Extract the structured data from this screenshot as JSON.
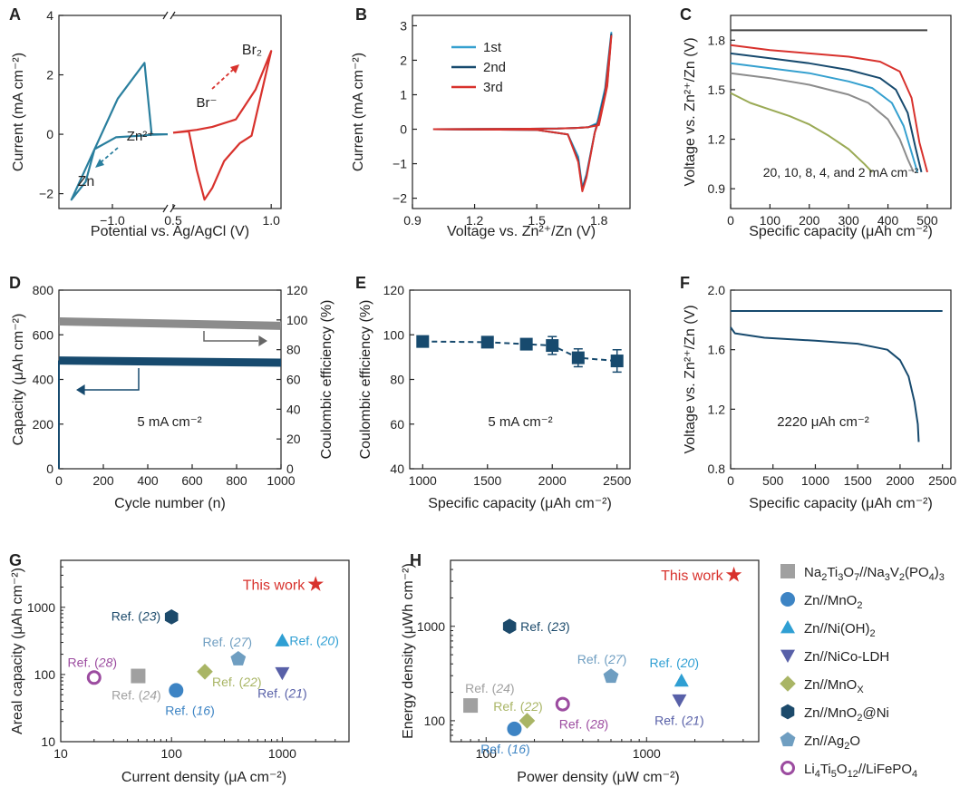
{
  "colors": {
    "axis": "#222222",
    "teal": "#2a7f9e",
    "light_blue": "#35a0cf",
    "navy": "#174a6e",
    "red": "#d8322d",
    "gray": "#8c8c8c",
    "olive": "#9aaa55",
    "dark_gray": "#444444",
    "star": "#d8322d",
    "gray_marker": "#a0a0a0",
    "blue_marker": "#3d84c4",
    "cyan_marker": "#2f9fd3",
    "purple_marker": "#5860a8",
    "olive_marker": "#a9b565",
    "hex_marker": "#1c4a6b",
    "pentagon_marker": "#6f9ec1",
    "ring_marker": "#9c4ca0"
  },
  "chart_data": [
    {
      "panel": "A",
      "type": "line",
      "xlabel": "Potential vs. Ag/AgCl (V)",
      "ylabel": "Current (mA cm⁻²)",
      "xlim_left": [
        -1.3,
        -0.7
      ],
      "xlim_right": [
        0.5,
        1.05
      ],
      "ylim": [
        -2.5,
        4
      ],
      "xticks_left": [
        "−1.0"
      ],
      "xticks_right": [
        "0.5",
        "1.0"
      ],
      "yticks": [
        "−2",
        "0",
        "2",
        "4"
      ],
      "annotations": [
        {
          "text": "Zn²⁺",
          "series": "Zn"
        },
        {
          "text": "Zn",
          "series": "Zn"
        },
        {
          "text": "Br⁻",
          "series": "Br"
        },
        {
          "text": "Br₂",
          "series": "Br"
        }
      ],
      "series": [
        {
          "color": "teal",
          "x": [
            -0.69,
            -0.78,
            -0.82,
            -0.97,
            -1.23,
            -1.15,
            -1.1,
            -0.98,
            -0.84,
            -0.78,
            -0.7
          ],
          "y": [
            0.0,
            0.0,
            2.4,
            1.2,
            -2.2,
            -1.6,
            -0.5,
            -0.1,
            -0.05,
            -0.02,
            0.0
          ]
        },
        {
          "color": "red",
          "x": [
            0.5,
            0.58,
            0.62,
            0.66,
            0.7,
            0.76,
            0.84,
            0.9,
            1.0,
            0.92,
            0.82,
            0.7,
            0.62,
            0.5
          ],
          "y": [
            0.05,
            0.1,
            -1.2,
            -2.2,
            -1.8,
            -0.9,
            -0.3,
            -0.05,
            2.8,
            1.5,
            0.5,
            0.25,
            0.15,
            0.05
          ]
        }
      ]
    },
    {
      "panel": "B",
      "type": "line",
      "xlabel": "Voltage vs. Zn²⁺/Zn (V)",
      "ylabel": "Current (mA cm⁻²)",
      "xlim": [
        0.9,
        1.95
      ],
      "ylim": [
        -2.3,
        3.3
      ],
      "xticks": [
        "0.9",
        "1.2",
        "1.5",
        "1.8"
      ],
      "yticks": [
        "−2",
        "−1",
        "0",
        "1",
        "2",
        "3"
      ],
      "series": [
        {
          "name": "1st",
          "color": "light_blue",
          "x": [
            1.0,
            1.5,
            1.65,
            1.7,
            1.72,
            1.74,
            1.78,
            1.8,
            1.83,
            1.86,
            1.84,
            1.8,
            1.75,
            1.7,
            1.6,
            1.4,
            1.0
          ],
          "y": [
            0.0,
            -0.02,
            -0.15,
            -0.8,
            -1.7,
            -1.3,
            -0.1,
            0.4,
            1.2,
            2.8,
            1.4,
            0.2,
            0.06,
            0.04,
            0.02,
            0.01,
            0.0
          ]
        },
        {
          "name": "2nd",
          "color": "navy",
          "x": [
            1.0,
            1.5,
            1.65,
            1.7,
            1.72,
            1.74,
            1.78,
            1.8,
            1.83,
            1.86,
            1.84,
            1.8,
            1.75,
            1.7,
            1.6,
            1.4,
            1.0
          ],
          "y": [
            0.0,
            -0.02,
            -0.15,
            -0.9,
            -1.75,
            -1.35,
            -0.1,
            0.3,
            1.1,
            2.75,
            1.3,
            0.15,
            0.06,
            0.04,
            0.02,
            0.01,
            0.0
          ]
        },
        {
          "name": "3rd",
          "color": "red",
          "x": [
            1.0,
            1.5,
            1.65,
            1.7,
            1.72,
            1.74,
            1.78,
            1.8,
            1.83,
            1.86,
            1.84,
            1.8,
            1.75,
            1.7,
            1.6,
            1.4,
            1.0
          ],
          "y": [
            0.0,
            -0.02,
            -0.15,
            -0.95,
            -1.8,
            -1.4,
            -0.1,
            0.25,
            1.0,
            2.7,
            1.25,
            0.12,
            0.06,
            0.04,
            0.02,
            0.01,
            0.0
          ]
        }
      ]
    },
    {
      "panel": "C",
      "type": "line",
      "xlabel": "Specific capacity (μAh cm⁻²)",
      "ylabel": "Voltage vs. Zn²⁺/Zn (V)",
      "xlim": [
        0,
        560
      ],
      "ylim": [
        0.78,
        1.95
      ],
      "xticks": [
        "0",
        "100",
        "200",
        "300",
        "400",
        "500"
      ],
      "yticks": [
        "0.9",
        "1.2",
        "1.5",
        "1.8"
      ],
      "annotations": [
        {
          "text": "20, 10, 8, 4, and 2 mA cm⁻²"
        }
      ],
      "series": [
        {
          "color": "dark_gray",
          "x": [
            0,
            500
          ],
          "y": [
            1.86,
            1.86
          ]
        },
        {
          "color": "olive",
          "x": [
            0,
            50,
            100,
            150,
            200,
            250,
            300,
            340,
            360
          ],
          "y": [
            1.48,
            1.42,
            1.38,
            1.34,
            1.29,
            1.22,
            1.14,
            1.05,
            1.0
          ]
        },
        {
          "color": "gray",
          "x": [
            0,
            100,
            200,
            300,
            350,
            400,
            430,
            450,
            465
          ],
          "y": [
            1.6,
            1.57,
            1.53,
            1.47,
            1.42,
            1.32,
            1.2,
            1.08,
            1.0
          ]
        },
        {
          "color": "light_blue",
          "x": [
            0,
            100,
            200,
            300,
            360,
            410,
            440,
            460,
            475
          ],
          "y": [
            1.66,
            1.63,
            1.6,
            1.55,
            1.51,
            1.42,
            1.28,
            1.12,
            1.0
          ]
        },
        {
          "color": "navy",
          "x": [
            0,
            100,
            200,
            300,
            380,
            420,
            450,
            470,
            485
          ],
          "y": [
            1.72,
            1.69,
            1.66,
            1.62,
            1.57,
            1.5,
            1.36,
            1.15,
            1.0
          ]
        },
        {
          "color": "red",
          "x": [
            0,
            100,
            200,
            300,
            380,
            430,
            460,
            480,
            500
          ],
          "y": [
            1.77,
            1.74,
            1.72,
            1.7,
            1.67,
            1.61,
            1.45,
            1.18,
            1.0
          ]
        }
      ]
    },
    {
      "panel": "D",
      "type": "scatter",
      "xlabel": "Cycle number (n)",
      "ylabel": "Capacity (μAh cm⁻²)",
      "ylabel_right": "Coulombic efficiency (%)",
      "xlim": [
        0,
        1000
      ],
      "ylim": [
        0,
        800
      ],
      "ylim_right": [
        0,
        120
      ],
      "xticks": [
        "0",
        "200",
        "400",
        "600",
        "800",
        "1000"
      ],
      "yticks": [
        "0",
        "200",
        "400",
        "600",
        "800"
      ],
      "yticks_right": [
        "0",
        "20",
        "40",
        "60",
        "80",
        "100",
        "120"
      ],
      "annotations": [
        {
          "text": "5 mA cm⁻²"
        }
      ],
      "series": [
        {
          "axis": "right",
          "color": "gray",
          "x": [
            0,
            1000
          ],
          "y": [
            99,
            96
          ]
        },
        {
          "axis": "left",
          "color": "navy",
          "x": [
            0,
            1000
          ],
          "y": [
            485,
            475
          ]
        }
      ]
    },
    {
      "panel": "E",
      "type": "line",
      "xlabel": "Specific capacity (μAh cm⁻²)",
      "ylabel": "Coulombic efficiency (%)",
      "xlim": [
        900,
        2600
      ],
      "ylim": [
        40,
        120
      ],
      "xticks": [
        "1000",
        "1500",
        "2000",
        "2500"
      ],
      "yticks": [
        "40",
        "60",
        "80",
        "100",
        "120"
      ],
      "annotations": [
        {
          "text": "5 mA cm⁻²"
        }
      ],
      "series": [
        {
          "color": "navy",
          "x": [
            1000,
            1500,
            1800,
            2000,
            2200,
            2500
          ],
          "y": [
            97,
            96.7,
            95.8,
            95.2,
            89.7,
            88.3
          ],
          "err": [
            1.5,
            1.5,
            1.5,
            4,
            4,
            5
          ]
        }
      ]
    },
    {
      "panel": "F",
      "type": "line",
      "xlabel": "Specific capacity (μAh cm⁻²)",
      "ylabel": "Voltage vs. Zn²⁺/Zn (V)",
      "xlim": [
        0,
        2600
      ],
      "ylim": [
        0.8,
        2.0
      ],
      "xticks": [
        "0",
        "500",
        "1000",
        "1500",
        "2000",
        "2500"
      ],
      "yticks": [
        "0.8",
        "1.2",
        "1.6",
        "2.0"
      ],
      "annotations": [
        {
          "text": "2220 μAh cm⁻²"
        }
      ],
      "series": [
        {
          "color": "navy",
          "x": [
            0,
            2500
          ],
          "y": [
            1.86,
            1.86
          ]
        },
        {
          "color": "navy",
          "x": [
            0,
            50,
            400,
            1000,
            1500,
            1850,
            2000,
            2100,
            2170,
            2210,
            2220
          ],
          "y": [
            1.75,
            1.71,
            1.68,
            1.66,
            1.64,
            1.6,
            1.53,
            1.42,
            1.25,
            1.1,
            0.98
          ]
        }
      ]
    },
    {
      "panel": "G",
      "type": "scatter",
      "xlabel": "Current density (μA cm⁻²)",
      "ylabel": "Areal capacity (μAh cm⁻²)",
      "xscale": "log",
      "yscale": "log",
      "xlim": [
        10,
        4000
      ],
      "ylim": [
        10,
        5000
      ],
      "xticks": [
        "10",
        "100",
        "1000"
      ],
      "yticks": [
        "10",
        "100",
        "1000"
      ],
      "points": [
        {
          "label_pre": "This work",
          "label_ref": "",
          "label_post": "",
          "x": 2000,
          "y": 2200,
          "marker": "star",
          "color": "star"
        },
        {
          "label_pre": "Ref. (",
          "label_ref": "23",
          "label_post": ")",
          "x": 100,
          "y": 720,
          "marker": "hexagon",
          "color": "hex_marker"
        },
        {
          "label_pre": "Ref. (",
          "label_ref": "27",
          "label_post": ")",
          "x": 400,
          "y": 170,
          "marker": "pentagon",
          "color": "pentagon_marker"
        },
        {
          "label_pre": "Ref. (",
          "label_ref": "20",
          "label_post": ")",
          "x": 1000,
          "y": 320,
          "marker": "triangle-up",
          "color": "cyan_marker"
        },
        {
          "label_pre": "Ref. (",
          "label_ref": "28",
          "label_post": ")",
          "x": 20,
          "y": 90,
          "marker": "ring",
          "color": "ring_marker"
        },
        {
          "label_pre": "Ref. (",
          "label_ref": "24",
          "label_post": ")",
          "x": 50,
          "y": 95,
          "marker": "square",
          "color": "gray_marker"
        },
        {
          "label_pre": "Ref. (",
          "label_ref": "22",
          "label_post": ")",
          "x": 200,
          "y": 110,
          "marker": "diamond",
          "color": "olive_marker"
        },
        {
          "label_pre": "Ref. (",
          "label_ref": "16",
          "label_post": ")",
          "x": 110,
          "y": 58,
          "marker": "circle",
          "color": "blue_marker"
        },
        {
          "label_pre": "Ref. (",
          "label_ref": "21",
          "label_post": ")",
          "x": 1000,
          "y": 105,
          "marker": "triangle-down",
          "color": "purple_marker"
        }
      ]
    },
    {
      "panel": "H",
      "type": "scatter",
      "xlabel": "Power density (μW cm⁻²)",
      "ylabel": "Energy density (μWh cm⁻²)",
      "xscale": "log",
      "yscale": "log",
      "xlim": [
        60,
        5000
      ],
      "ylim": [
        60,
        5000
      ],
      "xticks": [
        "100",
        "1000"
      ],
      "yticks": [
        "100",
        "1000"
      ],
      "points": [
        {
          "label_pre": "This work",
          "label_ref": "",
          "label_post": "",
          "x": 3500,
          "y": 3500,
          "marker": "star",
          "color": "star"
        },
        {
          "label_pre": "Ref. (",
          "label_ref": "23",
          "label_post": ")",
          "x": 140,
          "y": 1000,
          "marker": "hexagon",
          "color": "hex_marker"
        },
        {
          "label_pre": "Ref. (",
          "label_ref": "27",
          "label_post": ")",
          "x": 600,
          "y": 295,
          "marker": "pentagon",
          "color": "pentagon_marker"
        },
        {
          "label_pre": "Ref. (",
          "label_ref": "20",
          "label_post": ")",
          "x": 1650,
          "y": 265,
          "marker": "triangle-up",
          "color": "cyan_marker"
        },
        {
          "label_pre": "Ref. (",
          "label_ref": "24",
          "label_post": ")",
          "x": 80,
          "y": 145,
          "marker": "square",
          "color": "gray_marker"
        },
        {
          "label_pre": "Ref. (",
          "label_ref": "22",
          "label_post": ")",
          "x": 180,
          "y": 100,
          "marker": "diamond",
          "color": "olive_marker"
        },
        {
          "label_pre": "Ref. (",
          "label_ref": "28",
          "label_post": ")",
          "x": 300,
          "y": 150,
          "marker": "ring",
          "color": "ring_marker"
        },
        {
          "label_pre": "Ref. (",
          "label_ref": "16",
          "label_post": ")",
          "x": 150,
          "y": 82,
          "marker": "circle",
          "color": "blue_marker"
        },
        {
          "label_pre": "Ref. (",
          "label_ref": "21",
          "label_post": ")",
          "x": 1600,
          "y": 165,
          "marker": "triangle-down",
          "color": "purple_marker"
        }
      ]
    }
  ],
  "legend": [
    {
      "marker": "square",
      "color": "gray_marker",
      "parts": [
        [
          "Na",
          ""
        ],
        [
          "2",
          "sub"
        ],
        [
          "Ti",
          ""
        ],
        [
          "3",
          "sub"
        ],
        [
          "O",
          ""
        ],
        [
          "7",
          "sub"
        ],
        [
          "//Na",
          ""
        ],
        [
          "3",
          "sub"
        ],
        [
          "V",
          ""
        ],
        [
          "2",
          "sub"
        ],
        [
          "(PO",
          ""
        ],
        [
          "4",
          "sub"
        ],
        [
          ")",
          ""
        ],
        [
          "3",
          "sub"
        ]
      ]
    },
    {
      "marker": "circle",
      "color": "blue_marker",
      "parts": [
        [
          "Zn//MnO",
          ""
        ],
        [
          "2",
          "sub"
        ]
      ]
    },
    {
      "marker": "triangle-up",
      "color": "cyan_marker",
      "parts": [
        [
          "Zn//Ni(OH)",
          ""
        ],
        [
          "2",
          "sub"
        ]
      ]
    },
    {
      "marker": "triangle-down",
      "color": "purple_marker",
      "parts": [
        [
          "Zn//NiCo-LDH",
          ""
        ]
      ]
    },
    {
      "marker": "diamond",
      "color": "olive_marker",
      "parts": [
        [
          "Zn//MnO",
          ""
        ],
        [
          "X",
          "sub"
        ]
      ]
    },
    {
      "marker": "hexagon",
      "color": "hex_marker",
      "parts": [
        [
          "Zn//MnO",
          ""
        ],
        [
          "2",
          "sub"
        ],
        [
          "@Ni",
          ""
        ]
      ]
    },
    {
      "marker": "pentagon",
      "color": "pentagon_marker",
      "parts": [
        [
          "Zn//Ag",
          ""
        ],
        [
          "2",
          "sub"
        ],
        [
          "O",
          ""
        ]
      ]
    },
    {
      "marker": "ring",
      "color": "ring_marker",
      "parts": [
        [
          "Li",
          ""
        ],
        [
          "4",
          "sub"
        ],
        [
          "Ti",
          ""
        ],
        [
          "5",
          "sub"
        ],
        [
          "O",
          ""
        ],
        [
          "12",
          "sub"
        ],
        [
          "//LiFePO",
          ""
        ],
        [
          "4",
          "sub"
        ]
      ]
    }
  ]
}
